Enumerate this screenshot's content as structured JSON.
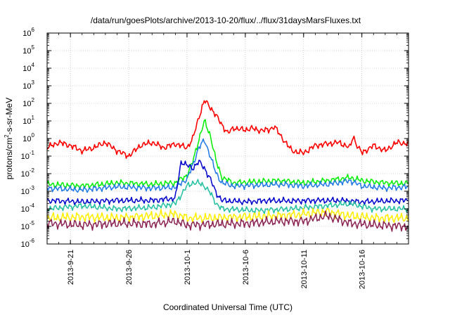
{
  "chart_data": {
    "type": "line",
    "title": "/data/run/goesPlots/archive/2013-10-20/flux/../flux/31daysMarsFluxes.txt",
    "xlabel": "Coordinated Universal Time (UTC)",
    "ylabel": "protons/cm²-s-sr-MeV",
    "ylabel_parts": {
      "base": "protons/cm",
      "sup": "2",
      "rest": "-s-sr-MeV"
    },
    "y_scale": "log",
    "ylim_exp": [
      -6,
      6
    ],
    "y_tick_labels": [
      {
        "base": "10",
        "exp": "-6"
      },
      {
        "base": "10",
        "exp": "-5"
      },
      {
        "base": "10",
        "exp": "-4"
      },
      {
        "base": "10",
        "exp": "-3"
      },
      {
        "base": "10",
        "exp": "-2"
      },
      {
        "base": "10",
        "exp": "-1"
      },
      {
        "base": "10",
        "exp": "0"
      },
      {
        "base": "10",
        "exp": "1"
      },
      {
        "base": "10",
        "exp": "2"
      },
      {
        "base": "10",
        "exp": "3"
      },
      {
        "base": "10",
        "exp": "4"
      },
      {
        "base": "10",
        "exp": "5"
      },
      {
        "base": "10",
        "exp": "6"
      }
    ],
    "xlim": [
      "2013-09-19",
      "2013-10-20"
    ],
    "x_tick_labels": [
      "2013-9-21",
      "2013-9-26",
      "2013-10-1",
      "2013-10-6",
      "2013-10-11",
      "2013-10-16"
    ],
    "x_tick_dates": [
      "2013-09-21",
      "2013-09-26",
      "2013-10-01",
      "2013-10-06",
      "2013-10-11",
      "2013-10-16"
    ],
    "grid": true,
    "series": [
      {
        "color": "#ff0000",
        "points": [
          [
            "2013-09-19",
            0.3
          ],
          [
            "2013-09-20",
            0.6
          ],
          [
            "2013-09-21",
            0.4
          ],
          [
            "2013-09-22",
            0.2
          ],
          [
            "2013-09-23",
            0.3
          ],
          [
            "2013-09-24",
            0.6
          ],
          [
            "2013-09-25",
            0.2
          ],
          [
            "2013-09-26",
            0.1
          ],
          [
            "2013-09-27",
            0.4
          ],
          [
            "2013-09-28",
            0.6
          ],
          [
            "2013-09-29",
            0.3
          ],
          [
            "2013-09-30",
            0.5
          ],
          [
            "2013-10-01",
            0.3
          ],
          [
            "2013-10-01T12:00",
            1.0
          ],
          [
            "2013-10-02",
            15
          ],
          [
            "2013-10-02T12:00",
            150
          ],
          [
            "2013-10-03",
            60
          ],
          [
            "2013-10-03T12:00",
            20
          ],
          [
            "2013-10-04",
            6
          ],
          [
            "2013-10-04T12:00",
            2
          ],
          [
            "2013-10-05",
            4
          ],
          [
            "2013-10-06",
            3
          ],
          [
            "2013-10-06T12:00",
            4
          ],
          [
            "2013-10-07",
            3
          ],
          [
            "2013-10-08",
            3
          ],
          [
            "2013-10-08T12:00",
            5
          ],
          [
            "2013-10-09",
            1.5
          ],
          [
            "2013-10-10",
            0.2
          ],
          [
            "2013-10-11",
            0.15
          ],
          [
            "2013-10-12",
            0.4
          ],
          [
            "2013-10-13",
            0.5
          ],
          [
            "2013-10-14",
            0.6
          ],
          [
            "2013-10-15",
            0.3
          ],
          [
            "2013-10-15T06:00",
            1.5
          ],
          [
            "2013-10-15T12:00",
            0.5
          ],
          [
            "2013-10-16",
            0.15
          ],
          [
            "2013-10-17",
            0.4
          ],
          [
            "2013-10-18",
            0.2
          ],
          [
            "2013-10-19",
            0.6
          ],
          [
            "2013-10-20",
            0.5
          ]
        ]
      },
      {
        "color": "#00ee00",
        "points": [
          [
            "2013-09-19",
            0.0025
          ],
          [
            "2013-09-22",
            0.002
          ],
          [
            "2013-09-25",
            0.003
          ],
          [
            "2013-09-28",
            0.0025
          ],
          [
            "2013-09-30",
            0.003
          ],
          [
            "2013-10-01",
            0.008
          ],
          [
            "2013-10-01T12:00",
            0.05
          ],
          [
            "2013-10-02",
            0.8
          ],
          [
            "2013-10-02T12:00",
            10
          ],
          [
            "2013-10-03",
            1.5
          ],
          [
            "2013-10-03T12:00",
            0.05
          ],
          [
            "2013-10-04",
            0.006
          ],
          [
            "2013-10-05",
            0.003
          ],
          [
            "2013-10-07",
            0.0035
          ],
          [
            "2013-10-09",
            0.004
          ],
          [
            "2013-10-11",
            0.003
          ],
          [
            "2013-10-13",
            0.004
          ],
          [
            "2013-10-15",
            0.006
          ],
          [
            "2013-10-16",
            0.004
          ],
          [
            "2013-10-18",
            0.003
          ],
          [
            "2013-10-20",
            0.0028
          ]
        ]
      },
      {
        "color": "#1e78e6",
        "points": [
          [
            "2013-09-19",
            0.0015
          ],
          [
            "2013-09-22",
            0.0012
          ],
          [
            "2013-09-25",
            0.0018
          ],
          [
            "2013-09-28",
            0.0015
          ],
          [
            "2013-09-30",
            0.0017
          ],
          [
            "2013-10-01",
            0.005
          ],
          [
            "2013-10-01T12:00",
            0.03
          ],
          [
            "2013-10-02",
            0.3
          ],
          [
            "2013-10-02T12:00",
            0.8
          ],
          [
            "2013-10-03",
            0.1
          ],
          [
            "2013-10-03T12:00",
            0.01
          ],
          [
            "2013-10-04",
            0.003
          ],
          [
            "2013-10-05",
            0.002
          ],
          [
            "2013-10-07",
            0.0022
          ],
          [
            "2013-10-09",
            0.0025
          ],
          [
            "2013-10-11",
            0.002
          ],
          [
            "2013-10-13",
            0.0025
          ],
          [
            "2013-10-15",
            0.004
          ],
          [
            "2013-10-16",
            0.002
          ],
          [
            "2013-10-18",
            0.0015
          ],
          [
            "2013-10-20",
            0.0018
          ]
        ]
      },
      {
        "color": "#0000cc",
        "points": [
          [
            "2013-09-19",
            0.0003
          ],
          [
            "2013-09-22",
            0.00025
          ],
          [
            "2013-09-25",
            0.0003
          ],
          [
            "2013-09-28",
            0.0003
          ],
          [
            "2013-09-30",
            0.0004
          ],
          [
            "2013-09-30T12:00",
            0.05
          ],
          [
            "2013-10-01",
            0.03
          ],
          [
            "2013-10-01T12:00",
            0.02
          ],
          [
            "2013-10-02",
            0.05
          ],
          [
            "2013-10-02T12:00",
            0.02
          ],
          [
            "2013-10-03",
            0.005
          ],
          [
            "2013-10-03T12:00",
            0.0008
          ],
          [
            "2013-10-04",
            0.0003
          ],
          [
            "2013-10-06",
            0.00025
          ],
          [
            "2013-10-08",
            0.0003
          ],
          [
            "2013-10-10",
            0.00028
          ],
          [
            "2013-10-12",
            0.0003
          ],
          [
            "2013-10-14",
            0.0003
          ],
          [
            "2013-10-16",
            0.00025
          ],
          [
            "2013-10-18",
            0.00028
          ],
          [
            "2013-10-20",
            0.0003
          ]
        ]
      },
      {
        "color": "#20c0a0",
        "points": [
          [
            "2013-09-19",
            0.0001
          ],
          [
            "2013-09-22",
            0.00015
          ],
          [
            "2013-09-25",
            0.0001
          ],
          [
            "2013-09-28",
            0.00012
          ],
          [
            "2013-09-30",
            0.0002
          ],
          [
            "2013-10-01",
            0.002
          ],
          [
            "2013-10-01T12:00",
            0.003
          ],
          [
            "2013-10-02",
            0.003
          ],
          [
            "2013-10-02T12:00",
            0.002
          ],
          [
            "2013-10-03",
            0.0008
          ],
          [
            "2013-10-03T12:00",
            0.0002
          ],
          [
            "2013-10-04",
            0.0001
          ],
          [
            "2013-10-07",
            8e-05
          ],
          [
            "2013-10-10",
            0.0001
          ],
          [
            "2013-10-13",
            0.00015
          ],
          [
            "2013-10-15",
            0.0002
          ],
          [
            "2013-10-17",
            0.0001
          ],
          [
            "2013-10-20",
            0.0001
          ]
        ]
      },
      {
        "color": "#ffee00",
        "points": [
          [
            "2013-09-19",
            3e-05
          ],
          [
            "2013-09-22",
            3.5e-05
          ],
          [
            "2013-09-25",
            3e-05
          ],
          [
            "2013-09-28",
            4e-05
          ],
          [
            "2013-09-30",
            5e-05
          ],
          [
            "2013-10-01",
            3e-05
          ],
          [
            "2013-10-03",
            3e-05
          ],
          [
            "2013-10-06",
            3.5e-05
          ],
          [
            "2013-10-09",
            4e-05
          ],
          [
            "2013-10-11",
            5e-05
          ],
          [
            "2013-10-13",
            7e-05
          ],
          [
            "2013-10-15",
            4e-05
          ],
          [
            "2013-10-17",
            3e-05
          ],
          [
            "2013-10-20",
            3e-05
          ]
        ]
      },
      {
        "color": "#8b2252",
        "points": [
          [
            "2013-09-19",
            1.5e-05
          ],
          [
            "2013-09-22",
            1.2e-05
          ],
          [
            "2013-09-25",
            1.5e-05
          ],
          [
            "2013-09-28",
            1.4e-05
          ],
          [
            "2013-09-30",
            2e-05
          ],
          [
            "2013-10-01",
            1.2e-05
          ],
          [
            "2013-10-03",
            1.3e-05
          ],
          [
            "2013-10-06",
            1.5e-05
          ],
          [
            "2013-10-09",
            2e-05
          ],
          [
            "2013-10-11",
            2e-05
          ],
          [
            "2013-10-13",
            4e-05
          ],
          [
            "2013-10-15",
            1.5e-05
          ],
          [
            "2013-10-17",
            1.2e-05
          ],
          [
            "2013-10-20",
            1e-05
          ]
        ]
      }
    ]
  }
}
